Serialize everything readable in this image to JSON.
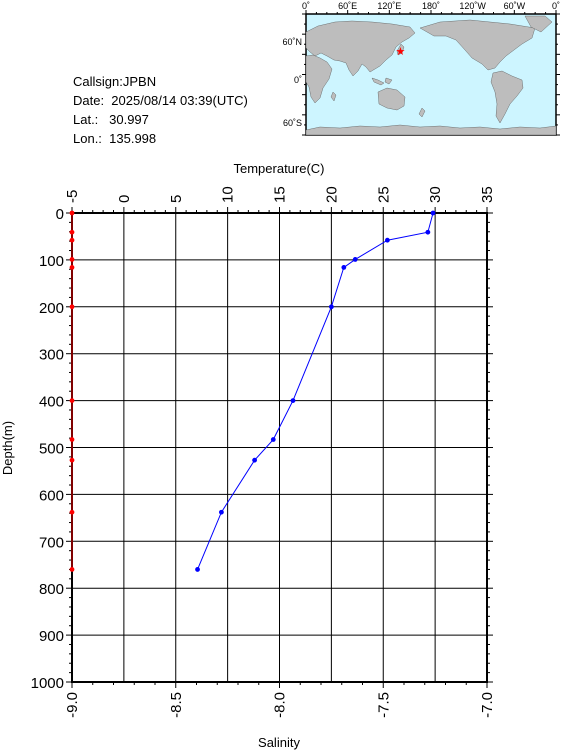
{
  "station": {
    "callsign": "Callsign:JPBN",
    "date": "Date:  2025/08/14 03:39(UTC)",
    "lat": "Lat.:   30.997",
    "lon": "Lon.:  135.998"
  },
  "map": {
    "lon_labels": [
      "0˚",
      "60˚E",
      "120˚E",
      "180˚",
      "120˚W",
      "60˚W",
      "0˚"
    ],
    "lat_labels": [
      "60˚N",
      "0˚",
      "60˚S"
    ],
    "ocean_color": "#cdf5ff",
    "land_color": "#bdbdbd",
    "marker_color": "#ff0000",
    "marker_symbol": "★",
    "marker": {
      "lat": 30.997,
      "lon": 135.998
    }
  },
  "chart_data": {
    "type": "line",
    "ylabel": "Depth(m)",
    "ylim": [
      0,
      1000
    ],
    "yticks": [
      "0",
      "100",
      "200",
      "300",
      "400",
      "500",
      "600",
      "700",
      "800",
      "900",
      "1000"
    ],
    "y_inverted": true,
    "grid": true,
    "top_axis": {
      "label": "Temperature(C)",
      "range": [
        -5,
        35
      ],
      "ticks": [
        "-5",
        "0",
        "5",
        "10",
        "15",
        "20",
        "25",
        "30",
        "35"
      ]
    },
    "bottom_axis": {
      "label": "Salinity",
      "range": [
        -9.0,
        -7.0
      ],
      "ticks": [
        "-9.0",
        "-8.5",
        "-8.0",
        "-7.5",
        "-7.0"
      ]
    },
    "series": [
      {
        "axis": "temperature",
        "color": "#0000ff",
        "points": [
          {
            "x": 29.8,
            "y": 0
          },
          {
            "x": 29.3,
            "y": 41
          },
          {
            "x": 25.4,
            "y": 58
          },
          {
            "x": 22.3,
            "y": 99
          },
          {
            "x": 21.2,
            "y": 116
          },
          {
            "x": 20.0,
            "y": 200
          },
          {
            "x": 16.3,
            "y": 400
          },
          {
            "x": 14.4,
            "y": 483
          },
          {
            "x": 12.6,
            "y": 527
          },
          {
            "x": 9.4,
            "y": 638
          },
          {
            "x": 7.1,
            "y": 760
          }
        ]
      },
      {
        "axis": "salinity",
        "color": "#ff0000",
        "points": [
          {
            "x": -9.0,
            "y": 0
          },
          {
            "x": -9.0,
            "y": 41
          },
          {
            "x": -9.0,
            "y": 58
          },
          {
            "x": -9.0,
            "y": 99
          },
          {
            "x": -9.0,
            "y": 116
          },
          {
            "x": -9.0,
            "y": 200
          },
          {
            "x": -9.0,
            "y": 400
          },
          {
            "x": -9.0,
            "y": 483
          },
          {
            "x": -9.0,
            "y": 527
          },
          {
            "x": -9.0,
            "y": 638
          },
          {
            "x": -9.0,
            "y": 760
          }
        ]
      }
    ]
  }
}
